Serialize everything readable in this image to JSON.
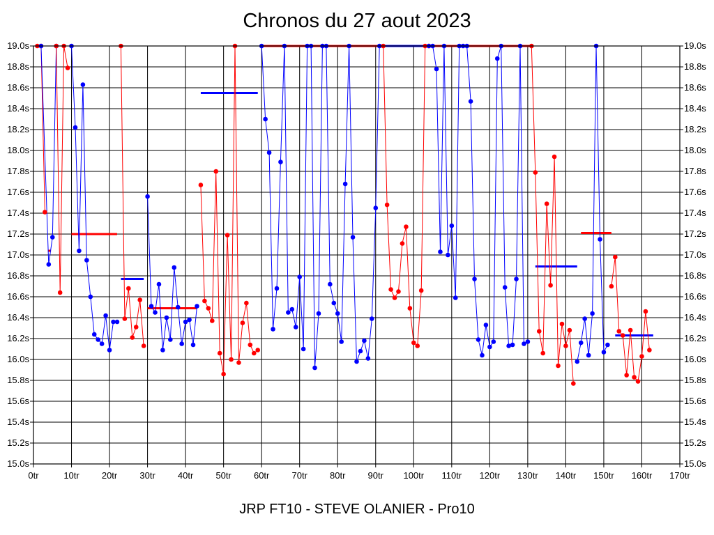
{
  "chart_data": {
    "type": "line",
    "title": "Chronos du 27 aout 2023",
    "xlabel": "JRP FT10 - STEVE OLANIER - Pro10",
    "ylabel": "",
    "xlim": [
      0,
      170
    ],
    "ylim": [
      15.0,
      19.0
    ],
    "x_ticks": [
      0,
      10,
      20,
      30,
      40,
      50,
      60,
      70,
      80,
      90,
      100,
      110,
      120,
      130,
      140,
      150,
      160,
      170
    ],
    "x_tick_labels": [
      "0tr",
      "10tr",
      "20tr",
      "30tr",
      "40tr",
      "50tr",
      "60tr",
      "70tr",
      "80tr",
      "90tr",
      "100tr",
      "110tr",
      "120tr",
      "130tr",
      "140tr",
      "150tr",
      "160tr",
      "170tr"
    ],
    "y_ticks": [
      15.0,
      15.2,
      15.4,
      15.6,
      15.8,
      16.0,
      16.2,
      16.4,
      16.6,
      16.8,
      17.0,
      17.2,
      17.4,
      17.6,
      17.8,
      18.0,
      18.2,
      18.4,
      18.6,
      18.8,
      19.0
    ],
    "y_tick_labels": [
      "15.0s",
      "15.2s",
      "15.4s",
      "15.6s",
      "15.8s",
      "16.0s",
      "16.2s",
      "16.4s",
      "16.6s",
      "16.8s",
      "17.0s",
      "17.2s",
      "17.4s",
      "17.6s",
      "17.8s",
      "18.0s",
      "18.2s",
      "18.4s",
      "18.6s",
      "18.8s",
      "19.0s"
    ],
    "grid": true,
    "colors": {
      "red": "#ff0000",
      "blue": "#0000ff",
      "grid": "#000000",
      "background": "#ffffff"
    },
    "series": [
      {
        "color": "#ff0000",
        "points": [
          [
            1,
            19.0
          ],
          [
            2,
            19.0
          ],
          [
            3,
            17.41
          ]
        ]
      },
      {
        "color": "#0000ff",
        "points": [
          [
            2,
            19.0
          ],
          [
            4,
            16.91
          ],
          [
            5,
            17.17
          ],
          [
            6,
            19.0
          ]
        ]
      },
      {
        "color": "#ff0000",
        "points": [
          [
            6,
            19.0
          ],
          [
            7,
            16.64
          ],
          [
            8,
            19.0
          ],
          [
            9,
            18.79
          ]
        ]
      },
      {
        "color": "#0000ff",
        "points": [
          [
            10,
            19.0
          ],
          [
            11,
            18.22
          ],
          [
            12,
            17.04
          ],
          [
            13,
            18.63
          ],
          [
            14,
            16.95
          ],
          [
            15,
            16.6
          ],
          [
            16,
            16.24
          ],
          [
            17,
            16.19
          ],
          [
            18,
            16.15
          ],
          [
            19,
            16.42
          ],
          [
            20,
            16.09
          ],
          [
            21,
            16.36
          ],
          [
            22,
            16.36
          ]
        ]
      },
      {
        "color": "#ff0000",
        "points": [
          [
            23,
            19.0
          ],
          [
            24,
            16.39
          ],
          [
            25,
            16.68
          ],
          [
            26,
            16.21
          ],
          [
            27,
            16.31
          ],
          [
            28,
            16.57
          ],
          [
            29,
            16.13
          ]
        ]
      },
      {
        "color": "#0000ff",
        "points": [
          [
            30,
            17.56
          ],
          [
            31,
            16.51
          ],
          [
            32,
            16.45
          ],
          [
            33,
            16.72
          ],
          [
            34,
            16.09
          ],
          [
            35,
            16.4
          ],
          [
            36,
            16.19
          ],
          [
            37,
            16.88
          ],
          [
            38,
            16.5
          ],
          [
            39,
            16.15
          ],
          [
            40,
            16.36
          ],
          [
            41,
            16.38
          ],
          [
            42,
            16.14
          ],
          [
            43,
            16.51
          ]
        ]
      },
      {
        "color": "#ff0000",
        "points": [
          [
            44,
            17.67
          ],
          [
            45,
            16.56
          ],
          [
            46,
            16.49
          ],
          [
            47,
            16.37
          ],
          [
            48,
            17.8
          ],
          [
            49,
            16.06
          ],
          [
            50,
            15.86
          ],
          [
            51,
            17.19
          ],
          [
            52,
            16.0
          ],
          [
            53,
            19.0
          ],
          [
            54,
            15.97
          ],
          [
            55,
            16.35
          ],
          [
            56,
            16.54
          ],
          [
            57,
            16.14
          ],
          [
            58,
            16.06
          ],
          [
            59,
            16.09
          ]
        ]
      },
      {
        "color": "#0000ff",
        "points": [
          [
            60,
            19.0
          ],
          [
            61,
            18.3
          ],
          [
            62,
            17.98
          ],
          [
            63,
            16.29
          ],
          [
            64,
            16.68
          ],
          [
            65,
            17.89
          ],
          [
            66,
            19.0
          ],
          [
            67,
            16.45
          ],
          [
            68,
            16.48
          ],
          [
            69,
            16.31
          ],
          [
            70,
            16.79
          ],
          [
            71,
            16.1
          ],
          [
            72,
            19.0
          ],
          [
            73,
            19.0
          ],
          [
            74,
            15.92
          ],
          [
            75,
            16.44
          ],
          [
            76,
            19.0
          ],
          [
            77,
            19.0
          ],
          [
            78,
            16.72
          ],
          [
            79,
            16.54
          ],
          [
            80,
            16.44
          ],
          [
            81,
            16.17
          ],
          [
            82,
            17.68
          ],
          [
            83,
            19.0
          ],
          [
            84,
            17.17
          ],
          [
            85,
            15.98
          ],
          [
            86,
            16.08
          ],
          [
            87,
            16.18
          ],
          [
            88,
            16.01
          ],
          [
            89,
            16.39
          ],
          [
            90,
            17.45
          ],
          [
            91,
            19.0
          ]
        ]
      },
      {
        "color": "#ff0000",
        "points": [
          [
            92,
            19.0
          ],
          [
            93,
            17.48
          ],
          [
            94,
            16.67
          ],
          [
            95,
            16.59
          ],
          [
            96,
            16.65
          ],
          [
            97,
            17.11
          ],
          [
            98,
            17.27
          ],
          [
            99,
            16.49
          ],
          [
            100,
            16.16
          ],
          [
            101,
            16.13
          ],
          [
            102,
            16.66
          ],
          [
            103,
            19.0
          ],
          [
            104,
            19.0
          ]
        ]
      },
      {
        "color": "#0000ff",
        "points": [
          [
            104,
            19.0
          ],
          [
            105,
            19.0
          ],
          [
            106,
            18.78
          ],
          [
            107,
            17.03
          ],
          [
            108,
            19.0
          ],
          [
            109,
            17.0
          ],
          [
            110,
            17.28
          ],
          [
            111,
            16.59
          ],
          [
            112,
            19.0
          ],
          [
            113,
            19.0
          ],
          [
            114,
            19.0
          ],
          [
            115,
            18.47
          ],
          [
            116,
            16.77
          ],
          [
            117,
            16.19
          ],
          [
            118,
            16.04
          ],
          [
            119,
            16.33
          ],
          [
            120,
            16.12
          ],
          [
            121,
            16.17
          ],
          [
            122,
            18.88
          ],
          [
            123,
            19.0
          ],
          [
            124,
            16.69
          ],
          [
            125,
            16.13
          ],
          [
            126,
            16.14
          ],
          [
            127,
            16.77
          ],
          [
            128,
            19.0
          ],
          [
            129,
            16.15
          ],
          [
            130,
            16.17
          ]
        ]
      },
      {
        "color": "#ff0000",
        "points": [
          [
            131,
            19.0
          ],
          [
            132,
            17.79
          ],
          [
            133,
            16.27
          ],
          [
            134,
            16.06
          ],
          [
            135,
            17.49
          ],
          [
            136,
            16.71
          ],
          [
            137,
            17.94
          ],
          [
            138,
            15.94
          ],
          [
            139,
            16.34
          ],
          [
            140,
            16.13
          ],
          [
            141,
            16.28
          ],
          [
            142,
            15.77
          ]
        ]
      },
      {
        "color": "#0000ff",
        "points": [
          [
            143,
            15.98
          ],
          [
            144,
            16.16
          ],
          [
            145,
            16.39
          ],
          [
            146,
            16.04
          ],
          [
            147,
            16.44
          ],
          [
            148,
            19.0
          ],
          [
            149,
            17.15
          ],
          [
            150,
            16.07
          ],
          [
            151,
            16.14
          ]
        ]
      },
      {
        "color": "#ff0000",
        "points": [
          [
            152,
            16.7
          ],
          [
            153,
            16.98
          ],
          [
            154,
            16.27
          ],
          [
            155,
            16.23
          ],
          [
            156,
            15.85
          ],
          [
            157,
            16.28
          ],
          [
            158,
            15.83
          ],
          [
            159,
            15.79
          ],
          [
            160,
            16.03
          ],
          [
            161,
            16.46
          ],
          [
            162,
            16.09
          ]
        ]
      }
    ],
    "averages": [
      {
        "color": "#ff0000",
        "x": [
          3.8,
          4.6
        ],
        "y": 17.04
      },
      {
        "color": "#ff0000",
        "x": [
          10,
          22
        ],
        "y": 17.2
      },
      {
        "color": "#0000ff",
        "x": [
          23,
          29
        ],
        "y": 16.77
      },
      {
        "color": "#ff0000",
        "x": [
          30,
          43
        ],
        "y": 16.49
      },
      {
        "color": "#0000ff",
        "x": [
          44,
          59
        ],
        "y": 18.55
      },
      {
        "color": "#ff0000",
        "x": [
          60,
          91
        ],
        "y": 19.0
      },
      {
        "color": "#0000ff",
        "x": [
          92,
          104
        ],
        "y": 19.0
      },
      {
        "color": "#ff0000",
        "x": [
          105,
          131
        ],
        "y": 19.0
      },
      {
        "color": "#0000ff",
        "x": [
          132,
          143
        ],
        "y": 16.89
      },
      {
        "color": "#ff0000",
        "x": [
          144,
          152
        ],
        "y": 17.21
      },
      {
        "color": "#0000ff",
        "x": [
          153,
          163
        ],
        "y": 16.23
      }
    ]
  }
}
